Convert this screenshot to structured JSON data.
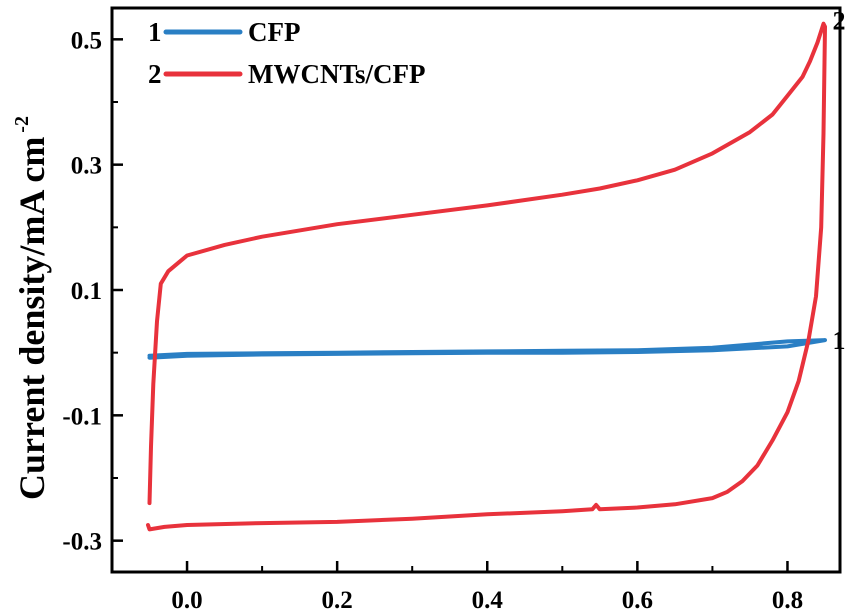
{
  "chart_data": {
    "type": "line",
    "title": "",
    "ylabel": "Current density/mA cm",
    "ylabel_superscript": "-2",
    "xlabel": "",
    "xlim": [
      -0.1,
      0.87
    ],
    "ylim": [
      -0.35,
      0.55
    ],
    "x_ticks": [
      0.0,
      0.2,
      0.4,
      0.6,
      0.8
    ],
    "x_tick_labels": [
      "0.0",
      "0.2",
      "0.4",
      "0.6",
      "0.8"
    ],
    "y_ticks": [
      -0.3,
      -0.1,
      0.1,
      0.3,
      0.5
    ],
    "y_tick_labels": [
      "-0.3",
      "-0.1",
      "0.1",
      "0.3",
      "0.5"
    ],
    "grid": false,
    "legend_position": "top-left",
    "series": [
      {
        "name": "CFP",
        "index_label": "1",
        "color": "#2a7fc4",
        "points": [
          [
            -0.05,
            -0.008
          ],
          [
            0.0,
            -0.005
          ],
          [
            0.1,
            -0.003
          ],
          [
            0.2,
            -0.002
          ],
          [
            0.3,
            -0.001
          ],
          [
            0.4,
            0.0
          ],
          [
            0.5,
            0.0
          ],
          [
            0.6,
            0.001
          ],
          [
            0.7,
            0.004
          ],
          [
            0.8,
            0.01
          ],
          [
            0.85,
            0.02
          ],
          [
            0.8,
            0.018
          ],
          [
            0.7,
            0.008
          ],
          [
            0.6,
            0.004
          ],
          [
            0.5,
            0.003
          ],
          [
            0.4,
            0.002
          ],
          [
            0.3,
            0.001
          ],
          [
            0.2,
            0.0
          ],
          [
            0.1,
            -0.001
          ],
          [
            0.0,
            -0.002
          ],
          [
            -0.05,
            -0.005
          ]
        ]
      },
      {
        "name": "MWCNTs/CFP",
        "index_label": "2",
        "color": "#e8323c",
        "points": [
          [
            -0.05,
            -0.24
          ],
          [
            -0.048,
            -0.15
          ],
          [
            -0.045,
            -0.05
          ],
          [
            -0.04,
            0.05
          ],
          [
            -0.035,
            0.11
          ],
          [
            -0.025,
            0.13
          ],
          [
            -0.01,
            0.145
          ],
          [
            0.0,
            0.155
          ],
          [
            0.05,
            0.172
          ],
          [
            0.1,
            0.185
          ],
          [
            0.2,
            0.205
          ],
          [
            0.3,
            0.22
          ],
          [
            0.4,
            0.235
          ],
          [
            0.5,
            0.252
          ],
          [
            0.55,
            0.262
          ],
          [
            0.6,
            0.275
          ],
          [
            0.65,
            0.292
          ],
          [
            0.7,
            0.318
          ],
          [
            0.75,
            0.352
          ],
          [
            0.78,
            0.38
          ],
          [
            0.8,
            0.41
          ],
          [
            0.82,
            0.44
          ],
          [
            0.83,
            0.465
          ],
          [
            0.84,
            0.495
          ],
          [
            0.848,
            0.525
          ],
          [
            0.85,
            0.52
          ],
          [
            0.848,
            0.35
          ],
          [
            0.845,
            0.2
          ],
          [
            0.838,
            0.09
          ],
          [
            0.828,
            0.02
          ],
          [
            0.815,
            -0.045
          ],
          [
            0.8,
            -0.095
          ],
          [
            0.78,
            -0.14
          ],
          [
            0.76,
            -0.18
          ],
          [
            0.74,
            -0.205
          ],
          [
            0.72,
            -0.222
          ],
          [
            0.7,
            -0.232
          ],
          [
            0.65,
            -0.242
          ],
          [
            0.6,
            -0.247
          ],
          [
            0.55,
            -0.25
          ],
          [
            0.545,
            -0.243
          ],
          [
            0.54,
            -0.25
          ],
          [
            0.5,
            -0.253
          ],
          [
            0.4,
            -0.258
          ],
          [
            0.3,
            -0.265
          ],
          [
            0.2,
            -0.27
          ],
          [
            0.1,
            -0.272
          ],
          [
            0.0,
            -0.275
          ],
          [
            -0.03,
            -0.278
          ],
          [
            -0.05,
            -0.282
          ],
          [
            -0.052,
            -0.275
          ]
        ]
      }
    ],
    "annotations": [
      {
        "text": "1",
        "x": 0.86,
        "y": 0.02
      },
      {
        "text": "2",
        "x": 0.86,
        "y": 0.53
      }
    ]
  }
}
